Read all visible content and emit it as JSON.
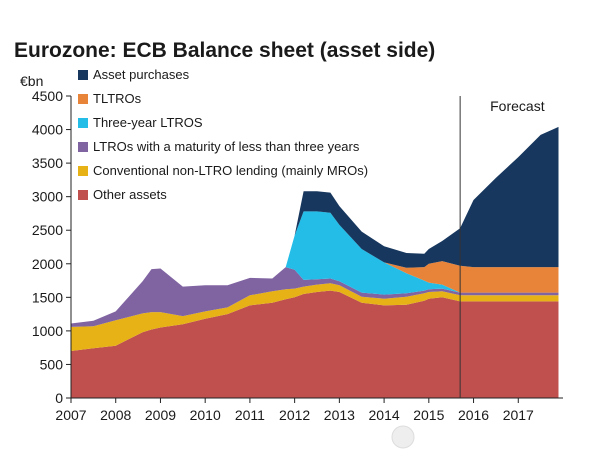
{
  "chart_data": {
    "type": "area",
    "stacked": true,
    "title": "Eurozone: ECB Balance sheet (asset side)",
    "unit_label": "€bn",
    "xlim": [
      2007.0,
      2018.0
    ],
    "ylim": [
      0,
      4500
    ],
    "y_ticks": [
      0,
      500,
      1000,
      1500,
      2000,
      2500,
      3000,
      3500,
      4000,
      4500
    ],
    "x_ticks": [
      2007,
      2008,
      2009,
      2010,
      2011,
      2012,
      2013,
      2014,
      2015,
      2016,
      2017
    ],
    "x_tick_labels": [
      "2007",
      "2008",
      "2009",
      "2010",
      "2011",
      "2012",
      "2013",
      "2014",
      "2015",
      "2016",
      "2017"
    ],
    "grid": false,
    "legend_position": "top-left",
    "annotation": {
      "text": "Forecast",
      "x": 2015.7
    },
    "x": [
      2007.0,
      2007.5,
      2008.0,
      2008.6,
      2008.8,
      2009.0,
      2009.5,
      2010.0,
      2010.5,
      2011.0,
      2011.5,
      2011.8,
      2012.0,
      2012.2,
      2012.5,
      2012.8,
      2013.0,
      2013.5,
      2014.0,
      2014.5,
      2014.9,
      2015.0,
      2015.3,
      2015.7,
      2016.0,
      2016.5,
      2017.0,
      2017.5,
      2017.9
    ],
    "series": [
      {
        "name": "Other assets",
        "color": "#c0504d",
        "values": [
          700,
          740,
          780,
          980,
          1020,
          1050,
          1100,
          1180,
          1250,
          1380,
          1420,
          1470,
          1500,
          1550,
          1580,
          1600,
          1580,
          1420,
          1380,
          1390,
          1450,
          1480,
          1500,
          1440,
          1440,
          1440,
          1440,
          1440,
          1440
        ]
      },
      {
        "name": "Conventional non-LTRO lending (mainly MROs)",
        "color": "#e6b216",
        "values": [
          360,
          330,
          380,
          280,
          260,
          230,
          120,
          110,
          100,
          150,
          170,
          150,
          130,
          110,
          110,
          110,
          100,
          90,
          100,
          120,
          110,
          100,
          90,
          90,
          90,
          90,
          90,
          90,
          90
        ]
      },
      {
        "name": "LTROs with a maturity of less than three years",
        "color": "#8064a2",
        "values": [
          50,
          80,
          130,
          480,
          640,
          650,
          440,
          390,
          330,
          260,
          190,
          330,
          280,
          100,
          80,
          70,
          60,
          60,
          60,
          50,
          40,
          40,
          40,
          40,
          40,
          40,
          40,
          40,
          40
        ]
      },
      {
        "name": "Three-year LTROS",
        "color": "#24bde8",
        "values": [
          0,
          0,
          0,
          0,
          0,
          0,
          0,
          0,
          0,
          0,
          0,
          0,
          510,
          1020,
          1010,
          980,
          840,
          650,
          480,
          300,
          150,
          100,
          60,
          0,
          0,
          0,
          0,
          0,
          0
        ]
      },
      {
        "name": "TLTROs",
        "color": "#e8843a",
        "values": [
          0,
          0,
          0,
          0,
          0,
          0,
          0,
          0,
          0,
          0,
          0,
          0,
          0,
          0,
          0,
          0,
          0,
          0,
          0,
          80,
          200,
          280,
          350,
          400,
          380,
          380,
          380,
          380,
          380
        ]
      },
      {
        "name": "Asset purchases",
        "color": "#17375e",
        "values": [
          0,
          0,
          0,
          0,
          0,
          0,
          0,
          0,
          0,
          0,
          0,
          0,
          0,
          300,
          300,
          300,
          280,
          260,
          240,
          220,
          200,
          220,
          300,
          560,
          1000,
          1330,
          1640,
          1970,
          2090
        ]
      }
    ]
  }
}
